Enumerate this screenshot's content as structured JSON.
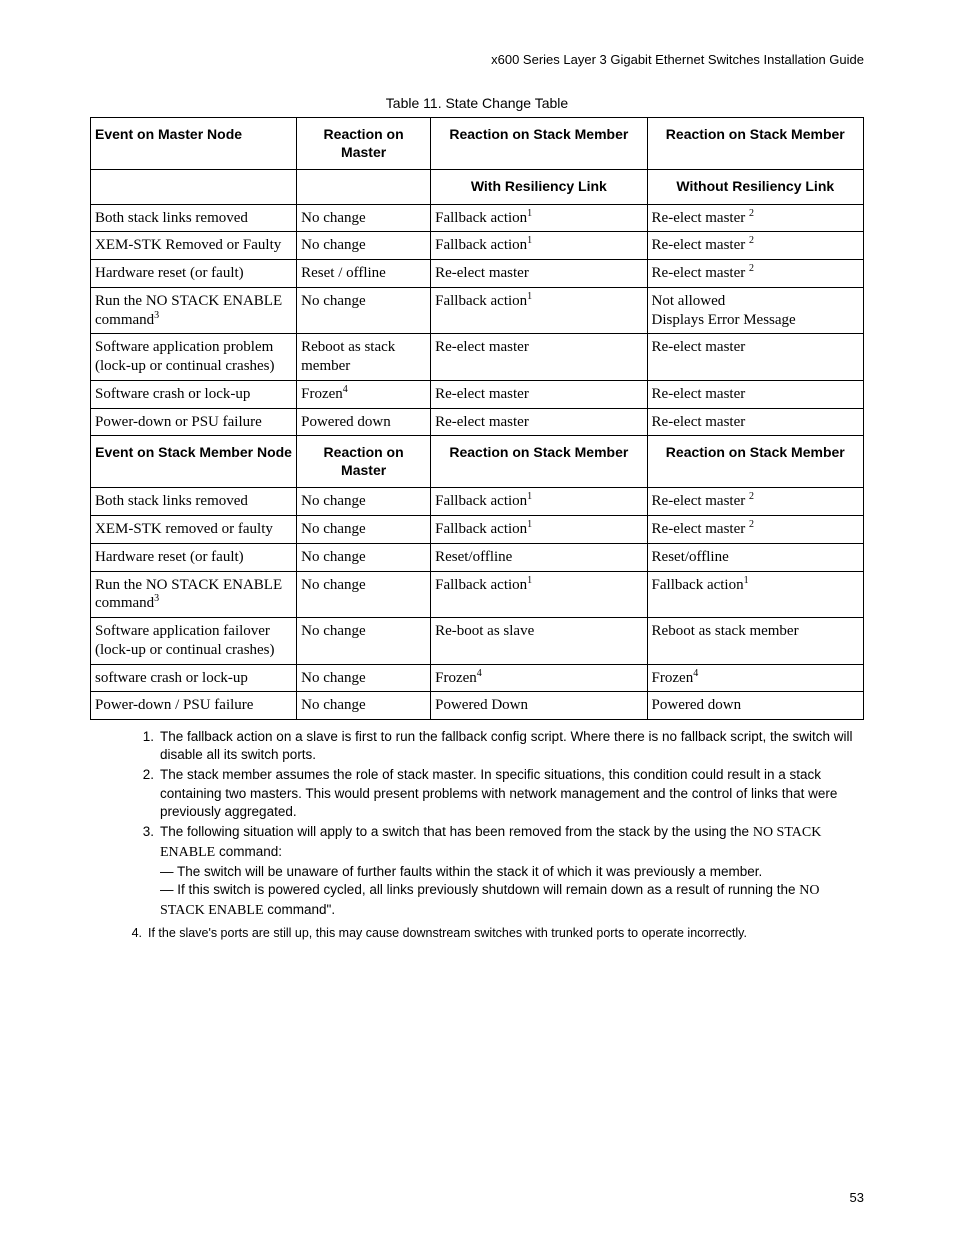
{
  "header": "x600 Series Layer 3 Gigabit Ethernet Switches Installation Guide",
  "caption": "Table 11. State Change Table",
  "h1": {
    "c1": "Event on Master Node",
    "c2": "Reaction on Master",
    "c3": "Reaction on Stack Member",
    "c4": "Reaction on Stack Member"
  },
  "h2": {
    "c3": "With Resiliency Link",
    "c4": "Without Resiliency Link"
  },
  "r1": {
    "c1": "Both stack links removed",
    "c2": "No change",
    "c3": "Fallback action",
    "c3s": "1",
    "c4": "Re-elect master",
    "c4s": "2"
  },
  "r2": {
    "c1": "XEM-STK Removed or Faulty",
    "c2": "No change",
    "c3": "Fallback action",
    "c3s": "1",
    "c4": "Re-elect master",
    "c4s": "2"
  },
  "r3": {
    "c1": "Hardware reset (or fault)",
    "c2": "Reset / offline",
    "c3": "Re-elect master",
    "c4": "Re-elect master",
    "c4s": "2"
  },
  "r4": {
    "c1a": "Run the NO STACK ENABLE command",
    "c1s": "3",
    "c2": "No change",
    "c3": "Fallback action",
    "c3s": "1",
    "c4a": "Not allowed",
    "c4b": "Displays Error Message"
  },
  "r5": {
    "c1": "Software application problem (lock-up or continual crashes)",
    "c2": "Reboot as stack member",
    "c3": "Re-elect master",
    "c4": "Re-elect master"
  },
  "r6": {
    "c1": "Software crash or lock-up",
    "c2": "Frozen",
    "c2s": "4",
    "c3": "Re-elect master",
    "c4": "Re-elect master"
  },
  "r7": {
    "c1": "Power-down or PSU failure",
    "c2": "Powered down",
    "c3": "Re-elect master",
    "c4": "Re-elect master"
  },
  "h3": {
    "c1": "Event on Stack Member Node",
    "c2": "Reaction on Master",
    "c3": "Reaction on Stack Member",
    "c4": "Reaction on Stack Member"
  },
  "r8": {
    "c1": "Both stack links removed",
    "c2": "No change",
    "c3": "Fallback action",
    "c3s": "1",
    "c4": "Re-elect master",
    "c4s": "2"
  },
  "r9": {
    "c1": "XEM-STK removed or faulty",
    "c2": "No change",
    "c3": "Fallback action",
    "c3s": "1",
    "c4": "Re-elect master",
    "c4s": "2"
  },
  "r10": {
    "c1": "Hardware reset (or fault)",
    "c2": "No change",
    "c3": "Reset/offline",
    "c4": "Reset/offline"
  },
  "r11": {
    "c1a": "Run the NO STACK ENABLE command",
    "c1s": "3",
    "c2": "No change",
    "c3": "Fallback action",
    "c3s": "1",
    "c4": "Fallback action",
    "c4s": "1"
  },
  "r12": {
    "c1": "Software application failover (lock-up or continual crashes)",
    "c2": "No change",
    "c3": "Re-boot as slave",
    "c4": "Reboot as stack member"
  },
  "r13": {
    "c1": "software crash or lock-up",
    "c2": "No change",
    "c3": "Frozen",
    "c3s": "4",
    "c4": "Frozen",
    "c4s": "4"
  },
  "r14": {
    "c1": "Power-down / PSU failure",
    "c2": "No change",
    "c3": "Powered Down",
    "c4": "Powered down"
  },
  "fn1": {
    "n": "1.",
    "t": "The fallback action on a slave is first to run the fallback config script. Where there is no fallback script, the switch will disable all its switch ports."
  },
  "fn2": {
    "n": "2.",
    "t": "The stack member assumes the role of stack master. In specific situations, this condition could result in a stack containing two masters. This would present problems with network management and the control of links that were previously aggregated."
  },
  "fn3": {
    "n": "3.",
    "ta": "The following situation will apply to a switch that has been removed from the stack by the using the ",
    "cmd1": "NO STACK ENABLE",
    "tb": " command:",
    "tc": "— The switch will be unaware of further faults within the stack it of which it was previously a member.",
    "td": "— If this switch is powered cycled, all links previously shutdown will remain down as a result of running the ",
    "cmd2": "NO STACK ENABLE",
    "te": " command\"."
  },
  "fn4": {
    "n": "4.",
    "t": "If the slave's ports are still up, this may cause downstream switches with trunked ports to operate incorrectly."
  },
  "pageNum": "53"
}
